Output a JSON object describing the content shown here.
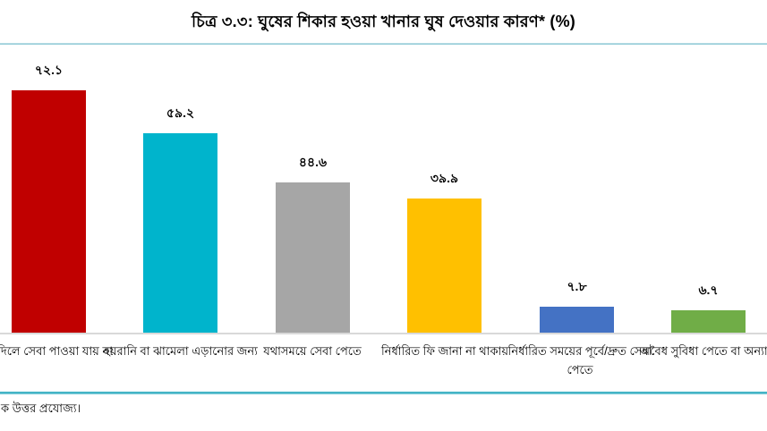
{
  "chart_data": {
    "type": "bar",
    "title": "চিত্র ৩.৩: ঘুষের শিকার হওয়া খানার ঘুষ দেওয়ার কারণ* (%)",
    "categories": [
      "না দিলে সেবা পাওয়া যায় না",
      "হয়রানি বা ঝামেলা এড়ানোর জন্য",
      "যথাসময়ে সেবা পেতে",
      "নির্ধারিত ফি জানা না থাকায়",
      "নির্ধারিত সময়ের পূর্বে/দ্রুত সেবা পেতে",
      "অবৈধ সুবিধা পেতে বা অন্যান্য"
    ],
    "values": [
      72.1,
      59.2,
      44.6,
      39.9,
      7.8,
      6.7
    ],
    "value_labels": [
      "৭২.১",
      "৫৯.২",
      "৪৪.৬",
      "৩৯.৯",
      "৭.৮",
      "৬.৭"
    ],
    "bar_colors": [
      "#c00000",
      "#00b4cc",
      "#a6a6a6",
      "#ffc000",
      "#4472c4",
      "#70ad47"
    ],
    "xlabel": "",
    "ylabel": "",
    "ylim": [
      0,
      80
    ],
    "grid": false,
    "legend": false,
    "data_labels": true
  },
  "footer": {
    "note": "ক উত্তর প্রযোজ্য।"
  },
  "colors": {
    "background": "#ffffff",
    "text": "#000000",
    "top_rule": "#8ec9d6",
    "bottom_rule": "#29a9bd",
    "axis_line": "#d9d9d9"
  }
}
